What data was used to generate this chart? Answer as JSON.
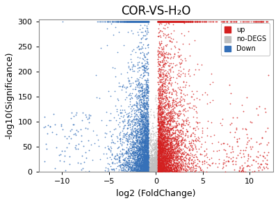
{
  "title": "COR-VS-H₂O",
  "xlabel": "log2 (FoldChange)",
  "ylabel": "-log10(Significance)",
  "xlim": [
    -12.5,
    12.5
  ],
  "ylim": [
    0,
    305
  ],
  "xticks": [
    -10,
    -5,
    0,
    5,
    10
  ],
  "yticks": [
    0,
    50,
    100,
    150,
    200,
    250,
    300
  ],
  "color_up": "#D42020",
  "color_down": "#3570B8",
  "color_nodeg": "#C0C0C0",
  "seed": 42,
  "n_up": 5000,
  "n_down": 4000,
  "n_nodeg": 1500,
  "n_up_far": 200,
  "n_down_far": 80,
  "point_size": 1.5,
  "alpha": 0.8,
  "legend_up": "up",
  "legend_nodeg": "no-DEGS",
  "legend_down": "Down",
  "background_color": "#FFFFFF",
  "title_fontsize": 12,
  "label_fontsize": 9,
  "tick_fontsize": 8
}
